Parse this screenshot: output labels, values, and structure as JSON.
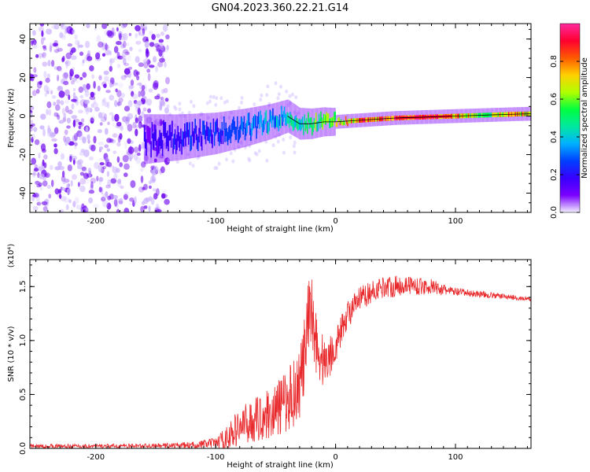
{
  "figure_title": "GN04.2023.360.22.21.G14",
  "colors": {
    "snr_line": "#e8282b",
    "spectrum_ridge": "#000000",
    "colormap": [
      "#f2f0ff",
      "#7b00ff",
      "#3800ff",
      "#0040ff",
      "#00b0ff",
      "#00e8a0",
      "#00ff40",
      "#b0ff00",
      "#ffd000",
      "#ff5a00",
      "#ff0030",
      "#ff2aa0"
    ]
  },
  "chart_data": [
    {
      "type": "heatmap",
      "title": "GN04.2023.360.22.21.G14",
      "xlabel": "Height of straight line (km)",
      "ylabel": "Frequency (Hz)",
      "xlim": [
        -255,
        163
      ],
      "ylim": [
        -50,
        48
      ],
      "xticks": [
        -200,
        -100,
        0,
        100
      ],
      "yticks": [
        -40,
        -20,
        0,
        20,
        40
      ],
      "x_tick_labels": [
        "-200",
        "-100",
        "0",
        "100"
      ],
      "y_tick_labels": [
        "-40",
        "-20",
        "0",
        "20",
        "40"
      ],
      "ridge": {
        "x": [
          -160,
          -130,
          -100,
          -75,
          -55,
          -40,
          -30,
          -20,
          -10,
          0,
          25,
          50,
          75,
          100,
          125,
          150,
          163
        ],
        "y": [
          -12,
          -11,
          -9,
          -6,
          -3,
          0,
          -4,
          -4,
          -3,
          -3,
          -2,
          -1,
          -0.5,
          0,
          0.5,
          1,
          1.2
        ],
        "amplitude": [
          0.2,
          0.25,
          0.3,
          0.35,
          0.4,
          0.45,
          0.5,
          0.55,
          0.6,
          0.7,
          0.85,
          0.9,
          0.95,
          0.8,
          0.6,
          0.85,
          0.7
        ]
      },
      "noise_region": {
        "x_range": [
          -255,
          -140
        ],
        "y_range": [
          -50,
          48
        ],
        "amplitude": [
          0.05,
          0.25
        ]
      },
      "colorbar": {
        "label": "Normalized spectral amplitude",
        "range": [
          0.0,
          1.0
        ],
        "ticks": [
          0.0,
          0.2,
          0.4,
          0.6,
          0.8
        ],
        "tick_labels": [
          "0.0",
          "0.2",
          "0.4",
          "0.6",
          "0.8"
        ]
      }
    },
    {
      "type": "line",
      "xlabel": "Height of straight line (km)",
      "ylabel": "SNR (10 * v/v)",
      "y_scale_label": "(x10⁴)",
      "xlim": [
        -255,
        163
      ],
      "ylim": [
        0.0,
        1.75
      ],
      "xticks": [
        -200,
        -100,
        0,
        100
      ],
      "yticks": [
        0.0,
        0.5,
        1.0,
        1.5
      ],
      "x_tick_labels": [
        "-200",
        "-100",
        "0",
        "100"
      ],
      "y_tick_labels": [
        "0.0",
        "0.5",
        "1.0",
        "1.5"
      ],
      "series": [
        {
          "name": "SNR",
          "x": [
            -255,
            -200,
            -150,
            -120,
            -100,
            -90,
            -80,
            -70,
            -60,
            -50,
            -40,
            -30,
            -25,
            -22,
            -20,
            -15,
            -10,
            -5,
            0,
            5,
            10,
            15,
            20,
            30,
            40,
            50,
            60,
            70,
            80,
            90,
            100,
            120,
            140,
            163
          ],
          "y": [
            0.02,
            0.02,
            0.025,
            0.03,
            0.05,
            0.1,
            0.2,
            0.25,
            0.3,
            0.35,
            0.45,
            0.6,
            0.9,
            1.2,
            1.3,
            0.9,
            0.8,
            0.85,
            0.95,
            1.1,
            1.25,
            1.3,
            1.38,
            1.45,
            1.5,
            1.5,
            1.52,
            1.5,
            1.5,
            1.47,
            1.45,
            1.43,
            1.41,
            1.38
          ],
          "noise_amp": [
            0.02,
            0.02,
            0.02,
            0.03,
            0.05,
            0.12,
            0.18,
            0.2,
            0.22,
            0.25,
            0.3,
            0.35,
            0.4,
            0.45,
            0.35,
            0.3,
            0.25,
            0.2,
            0.15,
            0.14,
            0.13,
            0.12,
            0.12,
            0.1,
            0.1,
            0.1,
            0.09,
            0.08,
            0.07,
            0.05,
            0.04,
            0.03,
            0.025,
            0.02
          ]
        }
      ]
    }
  ]
}
